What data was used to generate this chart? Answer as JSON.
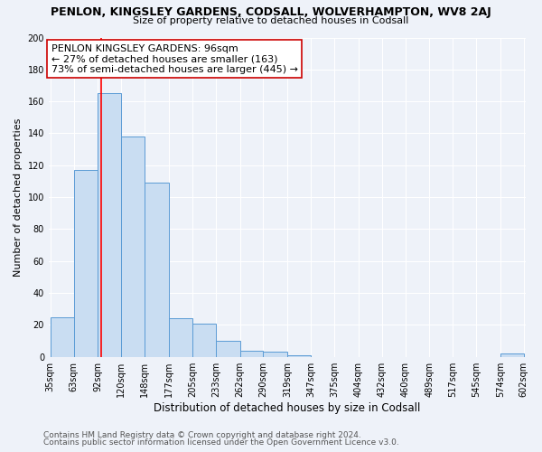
{
  "title": "PENLON, KINGSLEY GARDENS, CODSALL, WOLVERHAMPTON, WV8 2AJ",
  "subtitle": "Size of property relative to detached houses in Codsall",
  "xlabel": "Distribution of detached houses by size in Codsall",
  "ylabel": "Number of detached properties",
  "footer_line1": "Contains HM Land Registry data © Crown copyright and database right 2024.",
  "footer_line2": "Contains public sector information licensed under the Open Government Licence v3.0.",
  "bin_edges": [
    35,
    63,
    92,
    120,
    148,
    177,
    205,
    233,
    262,
    290,
    319,
    347,
    375,
    404,
    432,
    460,
    489,
    517,
    545,
    574,
    602
  ],
  "bar_heights": [
    25,
    117,
    165,
    138,
    109,
    24,
    21,
    10,
    4,
    3,
    1,
    0,
    0,
    0,
    0,
    0,
    0,
    0,
    0,
    2
  ],
  "bar_color": "#c9ddf2",
  "bar_edge_color": "#5b9bd5",
  "red_line_x": 96,
  "annotation_title": "PENLON KINGSLEY GARDENS: 96sqm",
  "annotation_line2": "← 27% of detached houses are smaller (163)",
  "annotation_line3": "73% of semi-detached houses are larger (445) →",
  "ylim": [
    0,
    200
  ],
  "yticks": [
    0,
    20,
    40,
    60,
    80,
    100,
    120,
    140,
    160,
    180,
    200
  ],
  "bg_color": "#eef2f9",
  "grid_color": "#ffffff",
  "annotation_box_color": "#ffffff",
  "annotation_box_edge": "#cc0000",
  "title_fontsize": 9,
  "subtitle_fontsize": 8,
  "xlabel_fontsize": 8.5,
  "ylabel_fontsize": 8,
  "annot_fontsize": 8,
  "footer_fontsize": 6.5,
  "tick_fontsize": 7
}
